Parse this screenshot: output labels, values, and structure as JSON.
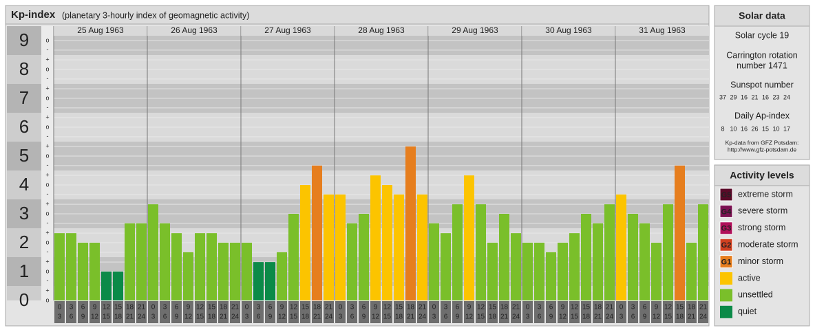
{
  "chart_data": {
    "type": "bar",
    "title": "Kp-index",
    "subtitle": "(planetary 3-hourly index of geomagnetic activity)",
    "days": [
      "25 Aug 1963",
      "26 Aug 1963",
      "27 Aug 1963",
      "28 Aug 1963",
      "29 Aug 1963",
      "30 Aug 1963",
      "31 Aug 1963"
    ],
    "intervals": [
      [
        0,
        3
      ],
      [
        3,
        6
      ],
      [
        6,
        9
      ],
      [
        9,
        12
      ],
      [
        12,
        15
      ],
      [
        15,
        18
      ],
      [
        18,
        21
      ],
      [
        21,
        24
      ]
    ],
    "values": [
      2.33,
      2.33,
      2,
      2,
      1,
      1,
      2.67,
      2.67,
      3.33,
      2.67,
      2.33,
      1.67,
      2.33,
      2.33,
      2,
      2,
      2,
      1.33,
      1.33,
      1.67,
      3,
      4,
      4.67,
      3.67,
      3.67,
      2.67,
      3,
      4.33,
      4,
      3.67,
      5.33,
      3.67,
      2.67,
      2.33,
      3.33,
      4.33,
      3.33,
      2,
      3,
      2.33,
      2,
      2,
      1.67,
      2,
      2.33,
      3,
      2.67,
      3.33,
      3.67,
      3,
      2.67,
      2,
      3.33,
      4.67,
      2,
      3.33
    ],
    "colors": [
      "#7abf2a",
      "#7abf2a",
      "#7abf2a",
      "#7abf2a",
      "#0b8a48",
      "#0b8a48",
      "#7abf2a",
      "#7abf2a",
      "#7abf2a",
      "#7abf2a",
      "#7abf2a",
      "#7abf2a",
      "#7abf2a",
      "#7abf2a",
      "#7abf2a",
      "#7abf2a",
      "#7abf2a",
      "#0b8a48",
      "#0b8a48",
      "#7abf2a",
      "#7abf2a",
      "#fcc400",
      "#e67e1e",
      "#fcc400",
      "#fcc400",
      "#7abf2a",
      "#7abf2a",
      "#fcc400",
      "#fcc400",
      "#fcc400",
      "#e67e1e",
      "#fcc400",
      "#7abf2a",
      "#7abf2a",
      "#7abf2a",
      "#fcc400",
      "#7abf2a",
      "#7abf2a",
      "#7abf2a",
      "#7abf2a",
      "#7abf2a",
      "#7abf2a",
      "#7abf2a",
      "#7abf2a",
      "#7abf2a",
      "#7abf2a",
      "#7abf2a",
      "#7abf2a",
      "#fcc400",
      "#7abf2a",
      "#7abf2a",
      "#7abf2a",
      "#7abf2a",
      "#e67e1e",
      "#7abf2a",
      "#7abf2a"
    ],
    "ylim": [
      0,
      9.5
    ],
    "yticks": [
      0,
      1,
      2,
      3,
      4,
      5,
      6,
      7,
      8,
      9
    ],
    "yticks_minor": [
      {
        "value": 0,
        "label": "o"
      },
      {
        "value": 0.33,
        "label": "+"
      },
      {
        "value": 0.67,
        "label": "-"
      },
      {
        "value": 1,
        "label": "o"
      },
      {
        "value": 1.33,
        "label": "+"
      },
      {
        "value": 1.67,
        "label": "-"
      },
      {
        "value": 2,
        "label": "o"
      },
      {
        "value": 2.33,
        "label": "+"
      },
      {
        "value": 2.67,
        "label": "-"
      },
      {
        "value": 3,
        "label": "o"
      },
      {
        "value": 3.33,
        "label": "+"
      },
      {
        "value": 3.67,
        "label": "-"
      },
      {
        "value": 4,
        "label": "o"
      },
      {
        "value": 4.33,
        "label": "+"
      },
      {
        "value": 4.67,
        "label": "-"
      },
      {
        "value": 5,
        "label": "o"
      },
      {
        "value": 5.33,
        "label": "+"
      },
      {
        "value": 5.67,
        "label": "-"
      },
      {
        "value": 6,
        "label": "o"
      },
      {
        "value": 6.33,
        "label": "+"
      },
      {
        "value": 6.67,
        "label": "-"
      },
      {
        "value": 7,
        "label": "o"
      },
      {
        "value": 7.33,
        "label": "+"
      },
      {
        "value": 7.67,
        "label": "-"
      },
      {
        "value": 8,
        "label": "o"
      },
      {
        "value": 8.33,
        "label": "+"
      },
      {
        "value": 8.67,
        "label": "-"
      },
      {
        "value": 9,
        "label": "o"
      }
    ],
    "grid": true
  },
  "solar_data": {
    "title": "Solar data",
    "cycle": "Solar cycle 19",
    "carrington": [
      "Carrington rotation",
      "number 1471"
    ],
    "sunspot_title": "Sunspot number",
    "sunspot": [
      37,
      29,
      16,
      21,
      16,
      23,
      24
    ],
    "ap_title": "Daily Ap-index",
    "ap": [
      8,
      10,
      16,
      26,
      15,
      10,
      17
    ],
    "source": [
      "Kp-data from GFZ Potsdam:",
      "http://www.gfz-potsdam.de"
    ]
  },
  "legend": {
    "title": "Activity levels",
    "items": [
      {
        "badge": "G5",
        "label": "extreme storm",
        "color": "#5a0a28"
      },
      {
        "badge": "G4",
        "label": "severe storm",
        "color": "#7a1050"
      },
      {
        "badge": "G3",
        "label": "strong storm",
        "color": "#b0105a"
      },
      {
        "badge": "G2",
        "label": "moderate storm",
        "color": "#d04020"
      },
      {
        "badge": "G1",
        "label": "minor storm",
        "color": "#e67e1e"
      },
      {
        "label": "active",
        "color": "#fcc400"
      },
      {
        "label": "unsettled",
        "color": "#7abf2a"
      },
      {
        "label": "quiet",
        "color": "#0b8a48"
      }
    ]
  }
}
